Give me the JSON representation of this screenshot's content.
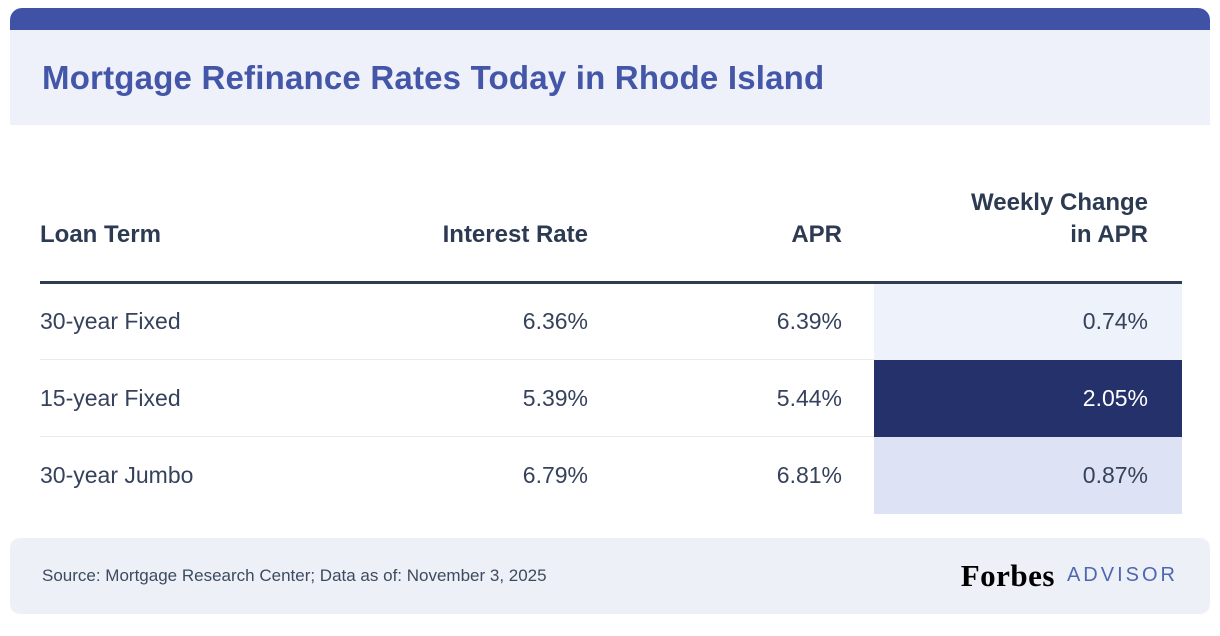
{
  "header": {
    "title": "Mortgage Refinance Rates Today in Rhode Island"
  },
  "table": {
    "columns": [
      "Loan Term",
      "Interest Rate",
      "APR",
      "Weekly Change in APR"
    ],
    "rows": [
      {
        "term": "30-year Fixed",
        "interest_rate": "6.36%",
        "apr": "6.39%",
        "weekly_change": "0.74%",
        "change_bg": "#eef2fb",
        "change_fg": "#36425c"
      },
      {
        "term": "15-year Fixed",
        "interest_rate": "5.39%",
        "apr": "5.44%",
        "weekly_change": "2.05%",
        "change_bg": "#25316b",
        "change_fg": "#ffffff"
      },
      {
        "term": "30-year Jumbo",
        "interest_rate": "6.79%",
        "apr": "6.81%",
        "weekly_change": "0.87%",
        "change_bg": "#dde3f5",
        "change_fg": "#36425c"
      }
    ]
  },
  "footer": {
    "source": "Source: Mortgage Research Center; Data as of: November 3, 2025",
    "brand": "Forbes",
    "brand_suffix": "ADVISOR"
  },
  "colors": {
    "top_bar": "#3f52a5",
    "title_text": "#4356a8",
    "title_panel_bg": "#eef1f9",
    "header_text": "#2c3a52",
    "body_text": "#36425c",
    "header_border": "#303c4f",
    "row_divider": "#e9eaee",
    "footer_bg": "#edf1f7",
    "footer_text": "#3d4a5f",
    "advisor_text": "#4d67b3"
  },
  "chart_data": {
    "type": "table",
    "title": "Mortgage Refinance Rates Today in Rhode Island",
    "columns": [
      "Loan Term",
      "Interest Rate",
      "APR",
      "Weekly Change in APR"
    ],
    "rows": [
      [
        "30-year Fixed",
        "6.36%",
        "6.39%",
        "0.74%"
      ],
      [
        "15-year Fixed",
        "5.39%",
        "5.44%",
        "2.05%"
      ],
      [
        "30-year Jumbo",
        "6.79%",
        "6.81%",
        "0.87%"
      ]
    ],
    "highlight": "Weekly Change in APR column cells shaded by magnitude; 2.05% cell dark navy with white text",
    "source": "Source: Mortgage Research Center; Data as of: November 3, 2025"
  }
}
